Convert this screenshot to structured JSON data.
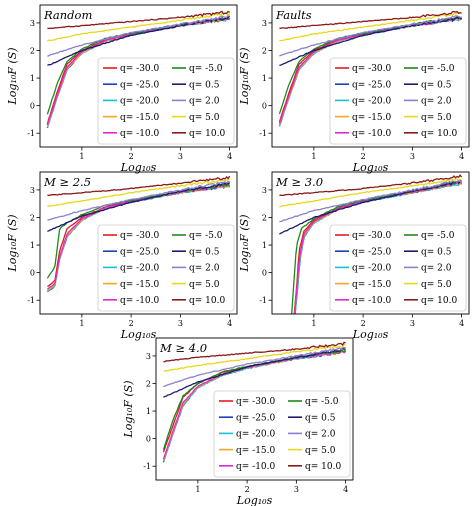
{
  "chart_data": {
    "type": "line",
    "q_values": [
      -30.0,
      -25.0,
      -20.0,
      -15.0,
      -10.0,
      -5.0,
      0.5,
      2.0,
      5.0,
      10.0
    ],
    "legend_labels": [
      "q= -30.0",
      "q= -25.0",
      "q= -20.0",
      "q= -15.0",
      "q= -10.0",
      "q= -5.0",
      "q= 0.5",
      "q= 2.0",
      "q= 5.0",
      "q= 10.0"
    ],
    "colors": [
      "#e41a1c",
      "#1f3fb4",
      "#17bfcf",
      "#f5a623",
      "#e027d0",
      "#1a8c1a",
      "#1c1c6e",
      "#8e7fcf",
      "#e8d81c",
      "#8b1a1a"
    ],
    "xlabel": "Log₁₀s",
    "ylabel": "Log₁₀F (S)",
    "xticks": [
      "1",
      "2",
      "3",
      "4"
    ],
    "yticks": [
      "-1",
      "0",
      "1",
      "2",
      "3"
    ],
    "xlim": [
      0.15,
      4.15
    ],
    "ylim": [
      -1.5,
      3.65
    ],
    "panels": [
      {
        "title": "Random",
        "series": [
          {
            "x": [
              0.3,
              0.5,
              0.7,
              1.0,
              1.5,
              2.0,
              3.0,
              4.0
            ],
            "y": [
              -0.65,
              0.5,
              1.5,
              2.0,
              2.4,
              2.6,
              2.9,
              3.15
            ]
          },
          {
            "x": [
              0.3,
              0.5,
              0.7,
              1.0,
              1.5,
              2.0,
              3.0,
              4.0
            ],
            "y": [
              -0.8,
              0.3,
              1.3,
              1.9,
              2.35,
              2.55,
              2.9,
              3.15
            ]
          },
          {
            "x": [
              0.3,
              0.5,
              0.7,
              1.0,
              1.5,
              2.0,
              3.0,
              4.0
            ],
            "y": [
              -0.78,
              0.32,
              1.32,
              1.9,
              2.35,
              2.56,
              2.9,
              3.15
            ]
          },
          {
            "x": [
              0.3,
              0.5,
              0.7,
              1.0,
              1.5,
              2.0,
              3.0,
              4.0
            ],
            "y": [
              -0.75,
              0.35,
              1.35,
              1.92,
              2.36,
              2.57,
              2.91,
              3.16
            ]
          },
          {
            "x": [
              0.3,
              0.5,
              0.7,
              1.0,
              1.5,
              2.0,
              3.0,
              4.0
            ],
            "y": [
              -0.7,
              0.4,
              1.4,
              1.95,
              2.38,
              2.58,
              2.92,
              3.17
            ]
          },
          {
            "x": [
              0.3,
              0.5,
              0.7,
              1.0,
              1.5,
              2.0,
              3.0,
              4.0
            ],
            "y": [
              -0.3,
              0.8,
              1.6,
              2.05,
              2.45,
              2.62,
              2.95,
              3.2
            ]
          },
          {
            "x": [
              0.3,
              1.0,
              2.0,
              3.0,
              4.0
            ],
            "y": [
              1.45,
              2.0,
              2.55,
              2.9,
              3.2
            ]
          },
          {
            "x": [
              0.3,
              1.0,
              2.0,
              3.0,
              4.0
            ],
            "y": [
              1.8,
              2.2,
              2.65,
              2.95,
              3.25
            ]
          },
          {
            "x": [
              0.3,
              1.0,
              2.0,
              3.0,
              4.0
            ],
            "y": [
              2.35,
              2.6,
              2.85,
              3.1,
              3.35
            ]
          },
          {
            "x": [
              0.3,
              1.0,
              2.0,
              3.0,
              4.0
            ],
            "y": [
              2.8,
              2.9,
              3.05,
              3.2,
              3.4
            ]
          }
        ]
      },
      {
        "title": "Faults",
        "series": [
          {
            "x": [
              0.3,
              0.5,
              0.7,
              1.0,
              1.5,
              2.0,
              3.0,
              4.0
            ],
            "y": [
              -0.6,
              0.5,
              1.5,
              2.0,
              2.4,
              2.6,
              2.9,
              3.15
            ]
          },
          {
            "x": [
              0.3,
              0.5,
              0.7,
              1.0,
              1.5,
              2.0,
              3.0,
              4.0
            ],
            "y": [
              -0.75,
              0.3,
              1.3,
              1.9,
              2.35,
              2.55,
              2.9,
              3.15
            ]
          },
          {
            "x": [
              0.3,
              0.5,
              0.7,
              1.0,
              1.5,
              2.0,
              3.0,
              4.0
            ],
            "y": [
              -0.73,
              0.32,
              1.32,
              1.9,
              2.35,
              2.56,
              2.9,
              3.15
            ]
          },
          {
            "x": [
              0.3,
              0.5,
              0.7,
              1.0,
              1.5,
              2.0,
              3.0,
              4.0
            ],
            "y": [
              -0.7,
              0.35,
              1.35,
              1.92,
              2.36,
              2.57,
              2.91,
              3.16
            ]
          },
          {
            "x": [
              0.3,
              0.5,
              0.7,
              1.0,
              1.5,
              2.0,
              3.0,
              4.0
            ],
            "y": [
              -0.65,
              0.4,
              1.4,
              1.95,
              2.38,
              2.58,
              2.92,
              3.17
            ]
          },
          {
            "x": [
              0.3,
              0.5,
              0.7,
              1.0,
              1.5,
              2.0,
              3.0,
              4.0
            ],
            "y": [
              -0.3,
              0.8,
              1.6,
              2.05,
              2.45,
              2.62,
              2.95,
              3.2
            ]
          },
          {
            "x": [
              0.3,
              1.0,
              2.0,
              3.0,
              4.0
            ],
            "y": [
              1.45,
              2.0,
              2.55,
              2.9,
              3.2
            ]
          },
          {
            "x": [
              0.3,
              1.0,
              2.0,
              3.0,
              4.0
            ],
            "y": [
              1.8,
              2.2,
              2.65,
              2.95,
              3.25
            ]
          },
          {
            "x": [
              0.3,
              1.0,
              2.0,
              3.0,
              4.0
            ],
            "y": [
              2.35,
              2.6,
              2.85,
              3.1,
              3.35
            ]
          },
          {
            "x": [
              0.3,
              1.0,
              2.0,
              3.0,
              4.0
            ],
            "y": [
              2.8,
              2.9,
              3.05,
              3.2,
              3.4
            ]
          }
        ]
      },
      {
        "title": "M ≥ 2.5",
        "series": [
          {
            "x": [
              0.3,
              0.45,
              0.55,
              0.7,
              1.0,
              1.5,
              2.0,
              3.0,
              4.0
            ],
            "y": [
              -0.5,
              -0.3,
              0.8,
              1.6,
              2.0,
              2.4,
              2.6,
              2.9,
              3.2
            ]
          },
          {
            "x": [
              0.3,
              0.45,
              0.55,
              0.7,
              1.0,
              1.5,
              2.0,
              3.0,
              4.0
            ],
            "y": [
              -0.7,
              -0.5,
              0.5,
              1.3,
              1.9,
              2.35,
              2.55,
              2.9,
              3.15
            ]
          },
          {
            "x": [
              0.3,
              0.45,
              0.55,
              0.7,
              1.0,
              1.5,
              2.0,
              3.0,
              4.0
            ],
            "y": [
              -0.68,
              -0.48,
              0.52,
              1.32,
              1.9,
              2.35,
              2.56,
              2.9,
              3.15
            ]
          },
          {
            "x": [
              0.3,
              0.45,
              0.55,
              0.7,
              1.0,
              1.5,
              2.0,
              3.0,
              4.0
            ],
            "y": [
              -0.65,
              -0.45,
              0.55,
              1.35,
              1.92,
              2.36,
              2.57,
              2.91,
              3.16
            ]
          },
          {
            "x": [
              0.3,
              0.45,
              0.55,
              0.7,
              1.0,
              1.5,
              2.0,
              3.0,
              4.0
            ],
            "y": [
              -0.6,
              -0.4,
              0.6,
              1.4,
              1.95,
              2.38,
              2.58,
              2.92,
              3.17
            ]
          },
          {
            "x": [
              0.3,
              0.45,
              0.55,
              0.7,
              1.0,
              1.5,
              2.0,
              3.0,
              4.0
            ],
            "y": [
              -0.2,
              0.2,
              1.6,
              1.8,
              2.1,
              2.45,
              2.62,
              2.95,
              3.2
            ]
          },
          {
            "x": [
              0.3,
              1.0,
              2.0,
              3.0,
              4.0
            ],
            "y": [
              1.5,
              2.05,
              2.55,
              2.95,
              3.25
            ]
          },
          {
            "x": [
              0.3,
              1.0,
              2.0,
              3.0,
              4.0
            ],
            "y": [
              1.9,
              2.25,
              2.65,
              3.0,
              3.3
            ]
          },
          {
            "x": [
              0.3,
              1.0,
              2.0,
              3.0,
              4.0
            ],
            "y": [
              2.4,
              2.6,
              2.9,
              3.15,
              3.38
            ]
          },
          {
            "x": [
              0.3,
              1.0,
              2.0,
              3.0,
              4.0
            ],
            "y": [
              2.8,
              2.9,
              3.05,
              3.25,
              3.45
            ]
          }
        ]
      },
      {
        "title": "M ≥ 3.0",
        "series": [
          {
            "x": [
              0.6,
              0.65,
              0.7,
              0.8,
              1.0,
              1.5,
              2.0,
              3.0,
              4.0
            ],
            "y": [
              -1.5,
              -0.5,
              0.8,
              1.5,
              1.9,
              2.35,
              2.6,
              2.95,
              3.3
            ]
          },
          {
            "x": [
              0.62,
              0.67,
              0.72,
              0.8,
              1.0,
              1.5,
              2.0,
              3.0,
              4.0
            ],
            "y": [
              -1.5,
              -0.6,
              0.5,
              1.3,
              1.8,
              2.3,
              2.55,
              2.9,
              3.25
            ]
          },
          {
            "x": [
              0.62,
              0.67,
              0.72,
              0.8,
              1.0,
              1.5,
              2.0,
              3.0,
              4.0
            ],
            "y": [
              -1.5,
              -0.58,
              0.52,
              1.32,
              1.8,
              2.3,
              2.56,
              2.9,
              3.25
            ]
          },
          {
            "x": [
              0.61,
              0.66,
              0.71,
              0.8,
              1.0,
              1.5,
              2.0,
              3.0,
              4.0
            ],
            "y": [
              -1.5,
              -0.55,
              0.55,
              1.35,
              1.82,
              2.31,
              2.57,
              2.91,
              3.26
            ]
          },
          {
            "x": [
              0.61,
              0.66,
              0.71,
              0.8,
              1.0,
              1.5,
              2.0,
              3.0,
              4.0
            ],
            "y": [
              -1.5,
              -0.5,
              0.6,
              1.4,
              1.85,
              2.33,
              2.58,
              2.92,
              3.27
            ]
          },
          {
            "x": [
              0.55,
              0.6,
              0.65,
              0.75,
              1.0,
              1.5,
              2.0,
              3.0,
              4.0
            ],
            "y": [
              -1.5,
              -0.2,
              1.0,
              1.6,
              1.95,
              2.4,
              2.62,
              2.95,
              3.3
            ]
          },
          {
            "x": [
              0.3,
              1.0,
              2.0,
              3.0,
              4.0
            ],
            "y": [
              1.4,
              2.0,
              2.55,
              2.95,
              3.3
            ]
          },
          {
            "x": [
              0.3,
              1.0,
              2.0,
              3.0,
              4.0
            ],
            "y": [
              1.85,
              2.25,
              2.65,
              3.0,
              3.35
            ]
          },
          {
            "x": [
              0.3,
              1.0,
              2.0,
              3.0,
              4.0
            ],
            "y": [
              2.4,
              2.6,
              2.9,
              3.15,
              3.4
            ]
          },
          {
            "x": [
              0.3,
              1.0,
              2.0,
              3.0,
              4.0
            ],
            "y": [
              2.8,
              2.9,
              3.05,
              3.25,
              3.5
            ]
          }
        ]
      },
      {
        "title": "M ≥ 4.0",
        "series": [
          {
            "x": [
              0.3,
              0.5,
              0.7,
              1.0,
              1.5,
              2.0,
              3.0,
              4.0
            ],
            "y": [
              -0.5,
              0.5,
              1.5,
              2.0,
              2.4,
              2.6,
              2.95,
              3.2
            ]
          },
          {
            "x": [
              0.3,
              0.5,
              0.7,
              1.0,
              1.5,
              2.0,
              3.0,
              4.0
            ],
            "y": [
              -0.85,
              0.2,
              1.2,
              1.85,
              2.3,
              2.55,
              2.9,
              3.15
            ]
          },
          {
            "x": [
              0.3,
              0.5,
              0.7,
              1.0,
              1.5,
              2.0,
              3.0,
              4.0
            ],
            "y": [
              -0.83,
              0.22,
              1.22,
              1.85,
              2.3,
              2.56,
              2.9,
              3.15
            ]
          },
          {
            "x": [
              0.3,
              0.5,
              0.7,
              1.0,
              1.5,
              2.0,
              3.0,
              4.0
            ],
            "y": [
              -0.8,
              0.25,
              1.25,
              1.87,
              2.32,
              2.57,
              2.91,
              3.16
            ]
          },
          {
            "x": [
              0.3,
              0.5,
              0.7,
              1.0,
              1.5,
              2.0,
              3.0,
              4.0
            ],
            "y": [
              -0.75,
              0.3,
              1.3,
              1.9,
              2.34,
              2.58,
              2.92,
              3.17
            ]
          },
          {
            "x": [
              0.3,
              0.5,
              0.7,
              1.0,
              1.5,
              2.0,
              3.0,
              4.0
            ],
            "y": [
              -0.4,
              0.7,
              1.55,
              2.0,
              2.42,
              2.62,
              2.95,
              3.2
            ]
          },
          {
            "x": [
              0.3,
              1.0,
              2.0,
              3.0,
              4.0
            ],
            "y": [
              1.5,
              2.05,
              2.6,
              2.95,
              3.25
            ]
          },
          {
            "x": [
              0.3,
              1.0,
              2.0,
              3.0,
              4.0
            ],
            "y": [
              1.9,
              2.3,
              2.7,
              3.0,
              3.3
            ]
          },
          {
            "x": [
              0.3,
              1.0,
              2.0,
              3.0,
              4.0
            ],
            "y": [
              2.45,
              2.65,
              2.9,
              3.15,
              3.38
            ]
          },
          {
            "x": [
              0.3,
              1.0,
              2.0,
              3.0,
              4.0
            ],
            "y": [
              2.8,
              2.95,
              3.1,
              3.25,
              3.45
            ]
          }
        ]
      }
    ]
  }
}
